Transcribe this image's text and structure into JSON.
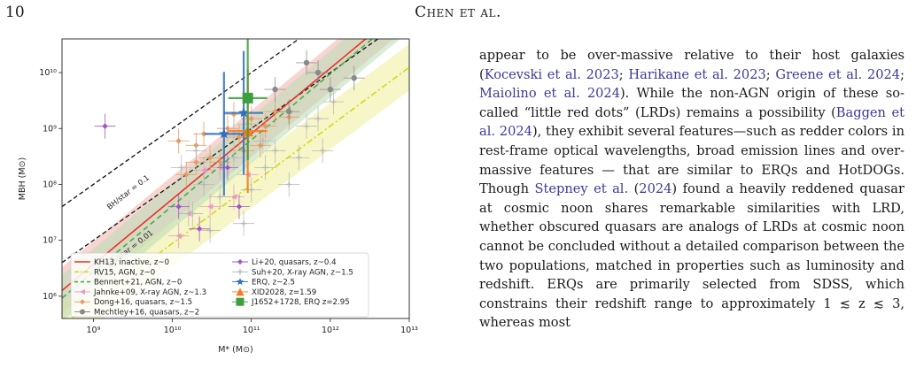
{
  "header": {
    "page_number": "10",
    "running_head": "Chen et al."
  },
  "body_text": [
    {
      "t": "appear to be over-massive relative to their host galaxies ("
    },
    {
      "t": "Kocevski et al. 2023",
      "cite": true
    },
    {
      "t": "; "
    },
    {
      "t": "Harikane et al. 2023",
      "cite": true
    },
    {
      "t": "; "
    },
    {
      "t": "Greene et al. 2024",
      "cite": true
    },
    {
      "t": "; "
    },
    {
      "t": "Maiolino et al. 2024",
      "cite": true
    },
    {
      "t": "). While the non-AGN origin of these so-called “little red dots” (LRDs) remains a possibility ("
    },
    {
      "t": "Baggen et al. 2024",
      "cite": true
    },
    {
      "t": "), they exhibit several features—such as redder colors in rest-frame optical wavelengths, broad emission lines and over-massive features — that are similar to ERQs and HotDOGs. Though "
    },
    {
      "t": "Stepney et al.",
      "cite": true
    },
    {
      "t": " ("
    },
    {
      "t": "2024",
      "cite": true
    },
    {
      "t": ") found a heavily reddened quasar at cosmic noon shares remarkable similarities with LRD, whether obscured quasars are analogs of LRDs at cosmic noon cannot be concluded without a detailed comparison between the two populations, matched in properties such as luminosity and redshift. ERQs are primarily selected from SDSS, which constrains their redshift range to approximately 1 ≲ z ≲ 3, whereas most"
    }
  ],
  "chart_data": {
    "type": "scatter",
    "xlabel": "M* (M⊙)",
    "ylabel": "MBH (M⊙)",
    "xscale": "log",
    "yscale": "log",
    "xlim": [
      400000000.0,
      10000000000000.0
    ],
    "ylim": [
      400000.0,
      40000000000.0
    ],
    "x_ticks": [
      {
        "v": 1000000000.0,
        "label": "10⁹"
      },
      {
        "v": 10000000000.0,
        "label": "10¹⁰"
      },
      {
        "v": 100000000000.0,
        "label": "10¹¹"
      },
      {
        "v": 1000000000000.0,
        "label": "10¹²"
      },
      {
        "v": 10000000000000.0,
        "label": "10¹³"
      }
    ],
    "y_ticks": [
      {
        "v": 1000000.0,
        "label": "10⁶"
      },
      {
        "v": 10000000.0,
        "label": "10⁷"
      },
      {
        "v": 100000000.0,
        "label": "10⁸"
      },
      {
        "v": 1000000000.0,
        "label": "10⁹"
      },
      {
        "v": 10000000000.0,
        "label": "10¹⁰"
      }
    ],
    "ratio_lines": [
      {
        "label": "BH/star = 0.1",
        "ratio": 0.1
      },
      {
        "label": "BH/star = 0.01",
        "ratio": 0.01
      }
    ],
    "relations": [
      {
        "name": "KH13, inactive, z~0",
        "color": "#e8312a",
        "style": "solid",
        "x0": 100000000.0,
        "y0": 250000.0,
        "slope": 1.17,
        "band_color": "#f4b3ad"
      },
      {
        "name": "RV15, AGN, z~0",
        "color": "#d6d616",
        "style": "dashdot",
        "x0": 100000000.0,
        "y0": 70000.0,
        "slope": 1.05,
        "band_color": "#eeee9a"
      },
      {
        "name": "Bennert+21, AGN, z~0",
        "color": "#4aaa4a",
        "style": "dashed",
        "x0": 100000000.0,
        "y0": 180000.0,
        "slope": 1.18,
        "band_color": "#b9ddb5"
      }
    ],
    "series": [
      {
        "name": "Jahnke+09, X-ray AGN, z~1.3",
        "color": "#e898c8",
        "marker": "triangle-left",
        "points": [
          [
            12000000000.0,
            12000000.0
          ],
          [
            30000000000.0,
            40000000.0
          ],
          [
            40000000000.0,
            200000000.0
          ],
          [
            60000000000.0,
            60000000.0
          ],
          [
            90000000000.0,
            150000000.0
          ],
          [
            16000000000.0,
            30000000.0
          ],
          [
            25000000000.0,
            180000000.0
          ]
        ]
      },
      {
        "name": "Dong+16, quasars, z~1.5",
        "color": "#e59a62",
        "marker": "diamond",
        "points": [
          [
            15000000000.0,
            150000000.0
          ],
          [
            20000000000.0,
            500000000.0
          ],
          [
            30000000000.0,
            300000000.0
          ],
          [
            50000000000.0,
            1000000000.0
          ],
          [
            70000000000.0,
            700000000.0
          ],
          [
            100000000000.0,
            1500000000.0
          ],
          [
            130000000000.0,
            500000000.0
          ],
          [
            200000000000.0,
            2000000000.0
          ],
          [
            25000000000.0,
            800000000.0
          ],
          [
            40000000000.0,
            250000000.0
          ],
          [
            80000000000.0,
            400000000.0
          ],
          [
            150000000000.0,
            1100000000.0
          ],
          [
            300000000000.0,
            1600000000.0
          ],
          [
            60000000000.0,
            1800000000.0
          ],
          [
            12000000000.0,
            600000000.0
          ],
          [
            20000000000.0,
            250000000.0
          ]
        ]
      },
      {
        "name": "Mechtley+16, quasars, z~2",
        "color": "#8a8a8a",
        "marker": "circle",
        "points": [
          [
            200000000000.0,
            5000000000.0
          ],
          [
            500000000000.0,
            15000000000.0
          ],
          [
            1000000000000.0,
            5000000000.0
          ],
          [
            2000000000000.0,
            8000000000.0
          ],
          [
            300000000000.0,
            2000000000.0
          ],
          [
            700000000000.0,
            10000000000.0
          ]
        ]
      },
      {
        "name": "Li+20, quasars, z~0.4",
        "color": "#a055c4",
        "marker": "diamond",
        "points": [
          [
            1400000000.0,
            1100000000.0
          ],
          [
            22000000000.0,
            16000000.0
          ],
          [
            70000000000.0,
            40000000.0
          ],
          [
            50000000000.0,
            200000000.0
          ],
          [
            12000000000.0,
            40000000.0
          ]
        ]
      },
      {
        "name": "Suh+20, X-ray AGN, z~1.5",
        "color": "#b8b8b8",
        "marker": "plus",
        "points": [
          [
            13000000000.0,
            200000000.0
          ],
          [
            18000000000.0,
            30000000.0
          ],
          [
            25000000000.0,
            100000000.0
          ],
          [
            40000000000.0,
            60000000.0
          ],
          [
            60000000000.0,
            300000000.0
          ],
          [
            80000000000.0,
            20000000.0
          ],
          [
            100000000000.0,
            80000000.0
          ],
          [
            150000000000.0,
            200000000.0
          ],
          [
            200000000000.0,
            400000000.0
          ],
          [
            300000000000.0,
            100000000.0
          ],
          [
            500000000000.0,
            1100000000.0
          ],
          [
            800000000000.0,
            400000000.0
          ],
          [
            1100000000000.0,
            3000000000.0
          ],
          [
            60000000000.0,
            800000000.0
          ],
          [
            20000000000.0,
            400000000.0
          ],
          [
            30000000000.0,
            15000000.0
          ],
          [
            140000000000.0,
            600000000.0
          ],
          [
            700000000000.0,
            1500000000.0
          ],
          [
            400000000000.0,
            300000000.0
          ],
          [
            90000000000.0,
            1200000000.0
          ]
        ]
      },
      {
        "name": "ERQ, z~2.5",
        "color": "#2f6fc0",
        "marker": "star",
        "points": [
          [
            45000000000.0,
            800000000.0
          ],
          [
            80000000000.0,
            1900000000.0
          ]
        ]
      },
      {
        "name": "XID2028, z=1.59",
        "color": "#f47b20",
        "marker": "triangle",
        "points": [
          [
            90000000000.0,
            900000000.0
          ]
        ]
      },
      {
        "name": "J1652+1728, ERQ z=2.95",
        "color": "#3c9e3c",
        "marker": "square",
        "points": [
          [
            90000000000.0,
            3500000000.0
          ]
        ]
      }
    ],
    "legend_position": "lower-center",
    "legend_col1": [
      "KH13, inactive, z~0",
      "RV15, AGN, z~0",
      "Bennert+21, AGN, z~0",
      "Jahnke+09, X-ray AGN, z~1.3",
      "Dong+16, quasars, z~1.5",
      "Mechtley+16, quasars, z~2"
    ],
    "legend_col2": [
      "Li+20, quasars, z~0.4",
      "Suh+20, X-ray AGN, z~1.5",
      "ERQ, z~2.5",
      "XID2028, z=1.59",
      "J1652+1728, ERQ z=2.95"
    ]
  }
}
